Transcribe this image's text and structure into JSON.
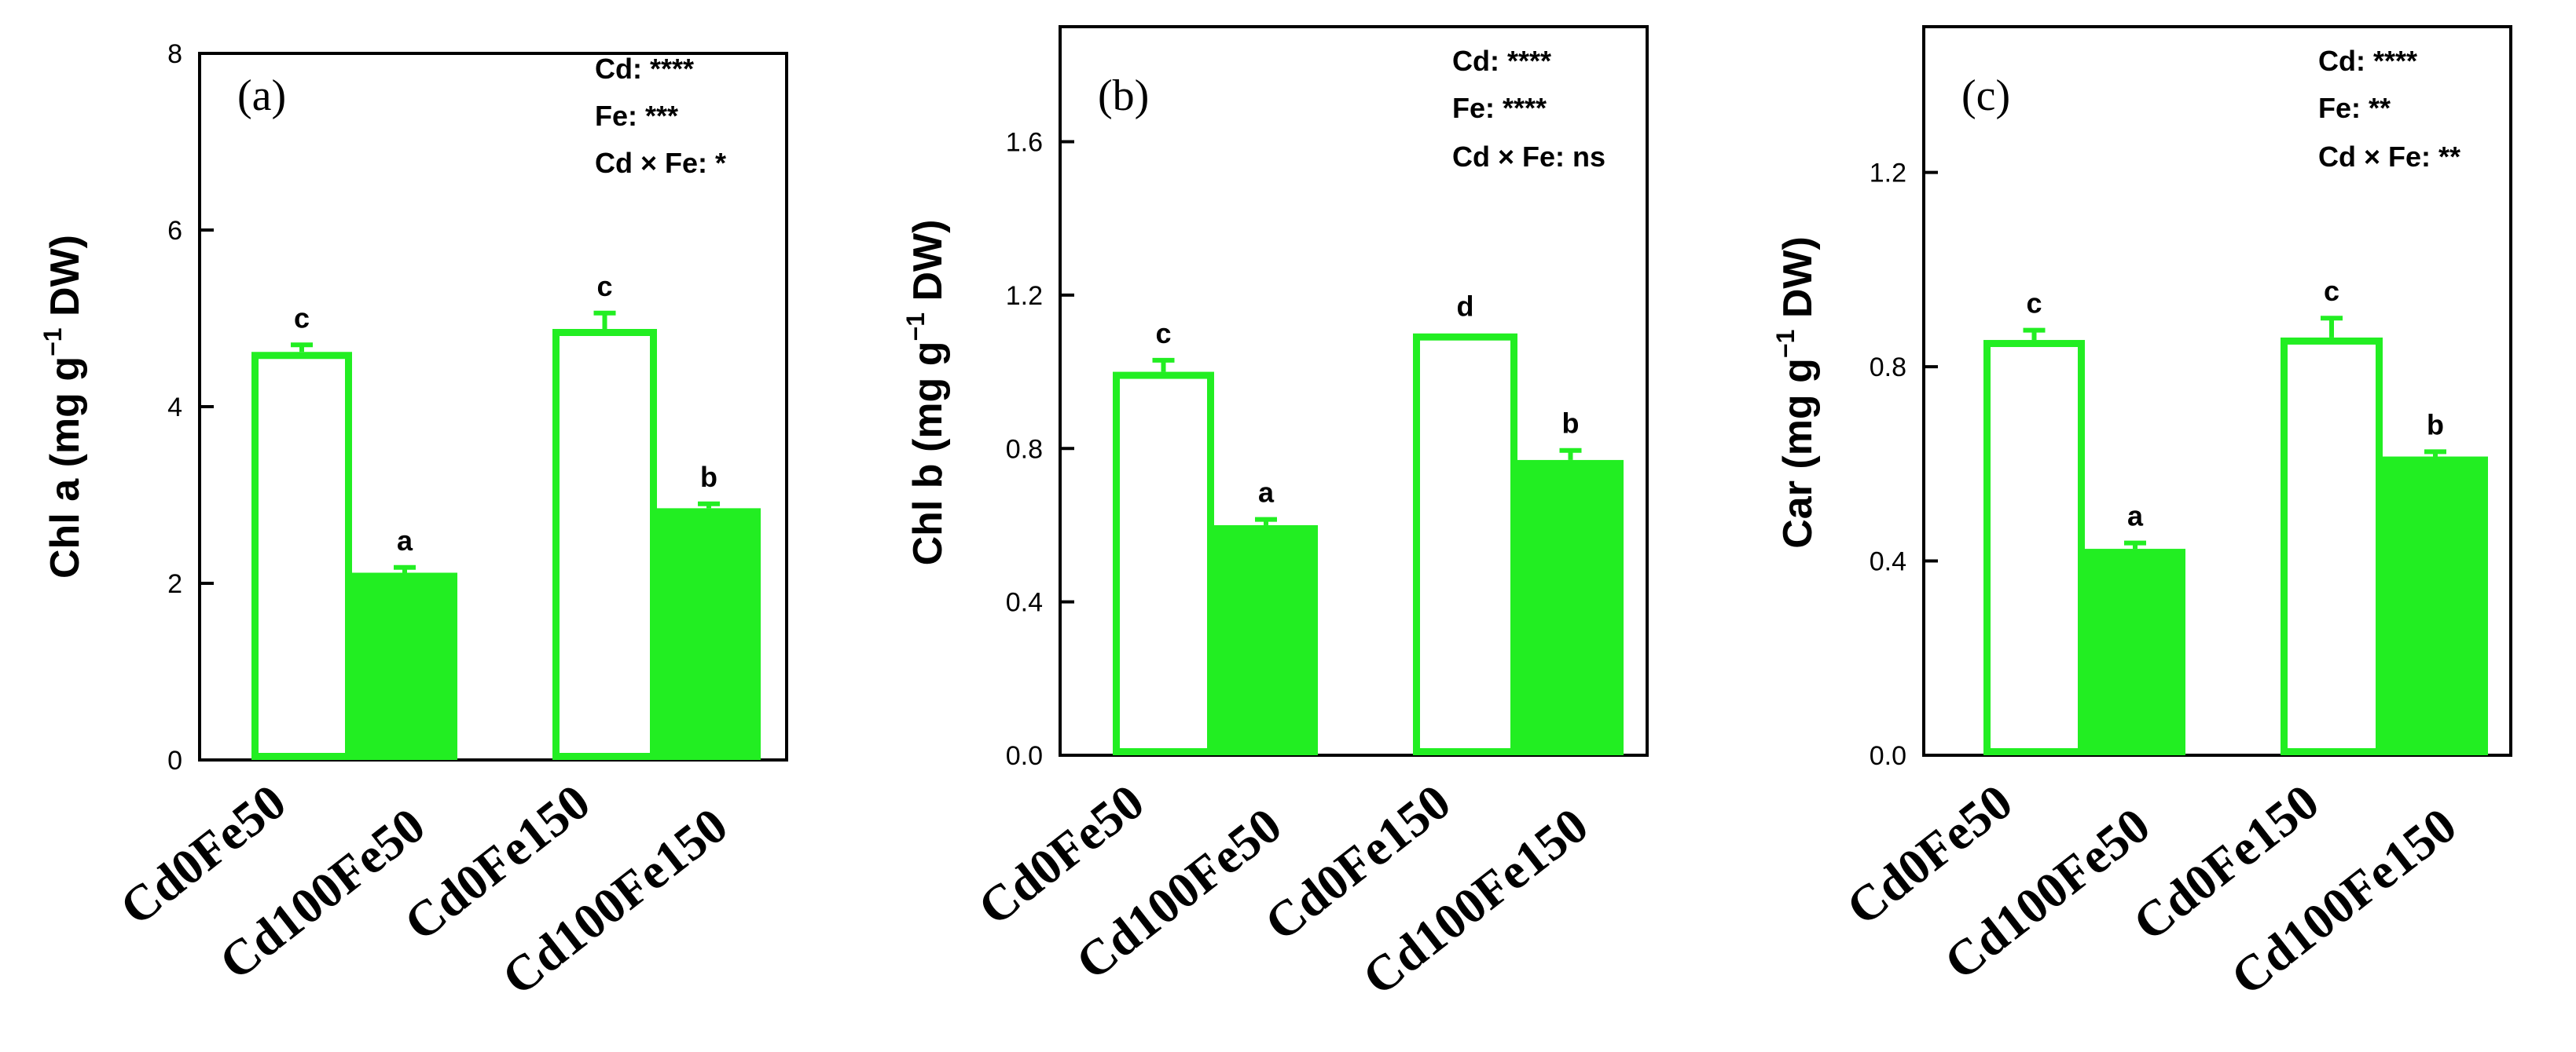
{
  "colors": {
    "bar": "#22ee22",
    "axis": "#000000"
  },
  "chart_data": [
    {
      "type": "bar",
      "panel_label": "(a)",
      "ylabel_main": "Chl a (mg g",
      "ylabel_sup": "−1",
      "ylabel_tail": " DW)",
      "ylim": [
        0,
        8
      ],
      "ticks": [
        0,
        2,
        4,
        6,
        8
      ],
      "tick_labels": [
        "0",
        "2",
        "4",
        "6",
        "8"
      ],
      "categories": [
        "Cd0Fe50",
        "Cd100Fe50",
        "Cd0Fe150",
        "Cd100Fe150"
      ],
      "values": [
        4.62,
        2.12,
        4.88,
        2.85
      ],
      "errors": [
        0.08,
        0.06,
        0.18,
        0.05
      ],
      "filled": [
        false,
        true,
        false,
        true
      ],
      "letters": [
        "c",
        "a",
        "c",
        "b"
      ],
      "stats": [
        "Cd: ****",
        "Fe: ***",
        "Cd × Fe: *"
      ]
    },
    {
      "type": "bar",
      "panel_label": "(b)",
      "ylabel_main": "Chl b (mg g",
      "ylabel_sup": "−1",
      "ylabel_tail": " DW)",
      "ylim": [
        0,
        1.9
      ],
      "ticks": [
        0,
        0.4,
        0.8,
        1.2,
        1.6
      ],
      "tick_labels": [
        "0.0",
        "0.4",
        "0.8",
        "1.2",
        "1.6"
      ],
      "categories": [
        "Cd0Fe50",
        "Cd100Fe50",
        "Cd0Fe150",
        "Cd100Fe150"
      ],
      "values": [
        1.0,
        0.6,
        1.1,
        0.77
      ],
      "errors": [
        0.03,
        0.015,
        0.0,
        0.025
      ],
      "filled": [
        false,
        true,
        false,
        true
      ],
      "letters": [
        "c",
        "a",
        "d",
        "b"
      ],
      "stats": [
        "Cd: ****",
        "Fe: ****",
        "Cd × Fe: ns"
      ]
    },
    {
      "type": "bar",
      "panel_label": "(c)",
      "ylabel_main": "Car (mg g",
      "ylabel_sup": "−1",
      "ylabel_tail": " DW)",
      "ylim": [
        0,
        1.5
      ],
      "ticks": [
        0,
        0.4,
        0.8,
        1.2
      ],
      "tick_labels": [
        "0.0",
        "0.4",
        "0.8",
        "1.2"
      ],
      "categories": [
        "Cd0Fe50",
        "Cd100Fe50",
        "Cd0Fe150",
        "Cd100Fe150"
      ],
      "values": [
        0.855,
        0.425,
        0.86,
        0.615
      ],
      "errors": [
        0.02,
        0.012,
        0.04,
        0.01
      ],
      "filled": [
        false,
        true,
        false,
        true
      ],
      "letters": [
        "c",
        "a",
        "c",
        "b"
      ],
      "stats": [
        "Cd: ****",
        "Fe: **",
        "Cd × Fe: **"
      ]
    }
  ]
}
